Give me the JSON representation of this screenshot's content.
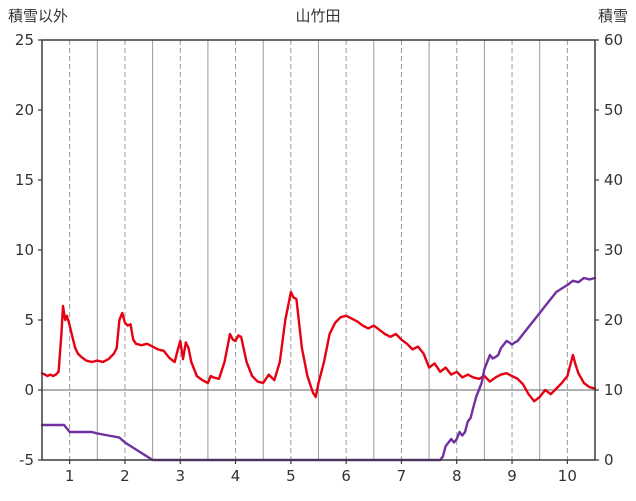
{
  "header": {
    "left_axis_label": "積雪以外",
    "title": "山竹田",
    "right_axis_label": "積雪"
  },
  "chart_data": {
    "type": "line",
    "title": "山竹田",
    "x_range": [
      0.5,
      10.5
    ],
    "x_ticks": [
      1,
      2,
      3,
      4,
      5,
      6,
      7,
      8,
      9,
      10
    ],
    "grid_x_step": 0.5,
    "left_axis": {
      "label": "積雪以外",
      "range": [
        -5,
        25
      ],
      "ticks": [
        -5,
        0,
        5,
        10,
        15,
        20,
        25
      ]
    },
    "right_axis": {
      "label": "積雪",
      "range": [
        0,
        60
      ],
      "ticks": [
        0,
        10,
        20,
        30,
        40,
        50,
        60
      ]
    },
    "zero_line_left_value": 0,
    "colors": {
      "grid": "#9a9a9a",
      "zero_line": "#808080",
      "border": "#3a3a3a",
      "text": "#333333"
    },
    "series": [
      {
        "name": "積雪以外",
        "axis": "left",
        "color": "#e60012",
        "points": [
          [
            0.5,
            1.2
          ],
          [
            0.55,
            1.1
          ],
          [
            0.6,
            1.0
          ],
          [
            0.65,
            1.1
          ],
          [
            0.7,
            1.0
          ],
          [
            0.75,
            1.1
          ],
          [
            0.8,
            1.3
          ],
          [
            0.85,
            4.0
          ],
          [
            0.88,
            6.0
          ],
          [
            0.92,
            5.0
          ],
          [
            0.95,
            5.3
          ],
          [
            1.0,
            4.6
          ],
          [
            1.05,
            3.8
          ],
          [
            1.1,
            3.0
          ],
          [
            1.15,
            2.6
          ],
          [
            1.2,
            2.4
          ],
          [
            1.3,
            2.1
          ],
          [
            1.4,
            2.0
          ],
          [
            1.5,
            2.1
          ],
          [
            1.6,
            2.0
          ],
          [
            1.7,
            2.2
          ],
          [
            1.8,
            2.6
          ],
          [
            1.85,
            3.0
          ],
          [
            1.9,
            5.0
          ],
          [
            1.95,
            5.5
          ],
          [
            2.0,
            4.8
          ],
          [
            2.05,
            4.6
          ],
          [
            2.1,
            4.7
          ],
          [
            2.15,
            3.6
          ],
          [
            2.2,
            3.3
          ],
          [
            2.3,
            3.2
          ],
          [
            2.4,
            3.3
          ],
          [
            2.5,
            3.1
          ],
          [
            2.6,
            2.9
          ],
          [
            2.7,
            2.8
          ],
          [
            2.8,
            2.3
          ],
          [
            2.9,
            2.0
          ],
          [
            2.95,
            2.8
          ],
          [
            3.0,
            3.5
          ],
          [
            3.05,
            2.2
          ],
          [
            3.1,
            3.4
          ],
          [
            3.15,
            3.0
          ],
          [
            3.2,
            2.0
          ],
          [
            3.3,
            1.0
          ],
          [
            3.4,
            0.7
          ],
          [
            3.5,
            0.5
          ],
          [
            3.55,
            1.0
          ],
          [
            3.6,
            0.9
          ],
          [
            3.7,
            0.8
          ],
          [
            3.8,
            2.0
          ],
          [
            3.9,
            4.0
          ],
          [
            3.95,
            3.6
          ],
          [
            4.0,
            3.5
          ],
          [
            4.05,
            3.9
          ],
          [
            4.1,
            3.8
          ],
          [
            4.2,
            2.0
          ],
          [
            4.3,
            1.0
          ],
          [
            4.4,
            0.6
          ],
          [
            4.5,
            0.5
          ],
          [
            4.6,
            1.1
          ],
          [
            4.7,
            0.7
          ],
          [
            4.8,
            2.0
          ],
          [
            4.9,
            5.0
          ],
          [
            5.0,
            7.0
          ],
          [
            5.05,
            6.6
          ],
          [
            5.1,
            6.5
          ],
          [
            5.2,
            3.0
          ],
          [
            5.3,
            1.0
          ],
          [
            5.4,
            -0.2
          ],
          [
            5.45,
            -0.5
          ],
          [
            5.5,
            0.5
          ],
          [
            5.6,
            2.0
          ],
          [
            5.7,
            4.0
          ],
          [
            5.8,
            4.8
          ],
          [
            5.9,
            5.2
          ],
          [
            6.0,
            5.3
          ],
          [
            6.1,
            5.1
          ],
          [
            6.2,
            4.9
          ],
          [
            6.3,
            4.6
          ],
          [
            6.4,
            4.4
          ],
          [
            6.5,
            4.6
          ],
          [
            6.6,
            4.3
          ],
          [
            6.7,
            4.0
          ],
          [
            6.8,
            3.8
          ],
          [
            6.9,
            4.0
          ],
          [
            7.0,
            3.6
          ],
          [
            7.1,
            3.3
          ],
          [
            7.2,
            2.9
          ],
          [
            7.3,
            3.1
          ],
          [
            7.4,
            2.6
          ],
          [
            7.5,
            1.6
          ],
          [
            7.6,
            1.9
          ],
          [
            7.7,
            1.3
          ],
          [
            7.8,
            1.6
          ],
          [
            7.9,
            1.1
          ],
          [
            8.0,
            1.3
          ],
          [
            8.1,
            0.9
          ],
          [
            8.2,
            1.1
          ],
          [
            8.3,
            0.9
          ],
          [
            8.4,
            0.8
          ],
          [
            8.5,
            1.0
          ],
          [
            8.6,
            0.6
          ],
          [
            8.7,
            0.9
          ],
          [
            8.8,
            1.1
          ],
          [
            8.9,
            1.2
          ],
          [
            9.0,
            1.0
          ],
          [
            9.1,
            0.8
          ],
          [
            9.2,
            0.4
          ],
          [
            9.3,
            -0.3
          ],
          [
            9.4,
            -0.8
          ],
          [
            9.5,
            -0.5
          ],
          [
            9.6,
            0.0
          ],
          [
            9.7,
            -0.3
          ],
          [
            9.8,
            0.1
          ],
          [
            9.9,
            0.5
          ],
          [
            10.0,
            1.0
          ],
          [
            10.1,
            2.5
          ],
          [
            10.15,
            1.8
          ],
          [
            10.2,
            1.2
          ],
          [
            10.3,
            0.5
          ],
          [
            10.4,
            0.2
          ],
          [
            10.5,
            0.1
          ]
        ]
      },
      {
        "name": "積雪",
        "axis": "right",
        "color": "#7030a0",
        "points": [
          [
            0.5,
            5
          ],
          [
            0.9,
            5
          ],
          [
            0.95,
            4.5
          ],
          [
            1.0,
            4
          ],
          [
            1.4,
            4
          ],
          [
            1.5,
            3.8
          ],
          [
            1.7,
            3.5
          ],
          [
            1.9,
            3.2
          ],
          [
            2.0,
            2.5
          ],
          [
            2.1,
            2
          ],
          [
            2.2,
            1.5
          ],
          [
            2.3,
            1
          ],
          [
            2.4,
            0.5
          ],
          [
            2.5,
            0
          ],
          [
            7.7,
            0
          ],
          [
            7.75,
            0.5
          ],
          [
            7.8,
            2
          ],
          [
            7.85,
            2.5
          ],
          [
            7.9,
            3
          ],
          [
            7.95,
            2.5
          ],
          [
            8.0,
            3
          ],
          [
            8.05,
            4
          ],
          [
            8.1,
            3.5
          ],
          [
            8.15,
            4
          ],
          [
            8.2,
            5.5
          ],
          [
            8.25,
            6
          ],
          [
            8.3,
            7.5
          ],
          [
            8.35,
            9
          ],
          [
            8.4,
            10
          ],
          [
            8.45,
            11
          ],
          [
            8.5,
            13
          ],
          [
            8.55,
            14
          ],
          [
            8.6,
            15
          ],
          [
            8.65,
            14.5
          ],
          [
            8.7,
            14.7
          ],
          [
            8.75,
            15
          ],
          [
            8.8,
            16
          ],
          [
            8.85,
            16.5
          ],
          [
            8.9,
            17
          ],
          [
            8.95,
            16.8
          ],
          [
            9.0,
            16.5
          ],
          [
            9.05,
            16.8
          ],
          [
            9.1,
            17
          ],
          [
            9.2,
            18
          ],
          [
            9.3,
            19
          ],
          [
            9.4,
            20
          ],
          [
            9.5,
            21
          ],
          [
            9.6,
            22
          ],
          [
            9.7,
            23
          ],
          [
            9.8,
            24
          ],
          [
            9.9,
            24.5
          ],
          [
            10.0,
            25
          ],
          [
            10.1,
            25.6
          ],
          [
            10.2,
            25.4
          ],
          [
            10.3,
            26
          ],
          [
            10.4,
            25.8
          ],
          [
            10.5,
            26
          ]
        ]
      }
    ]
  }
}
